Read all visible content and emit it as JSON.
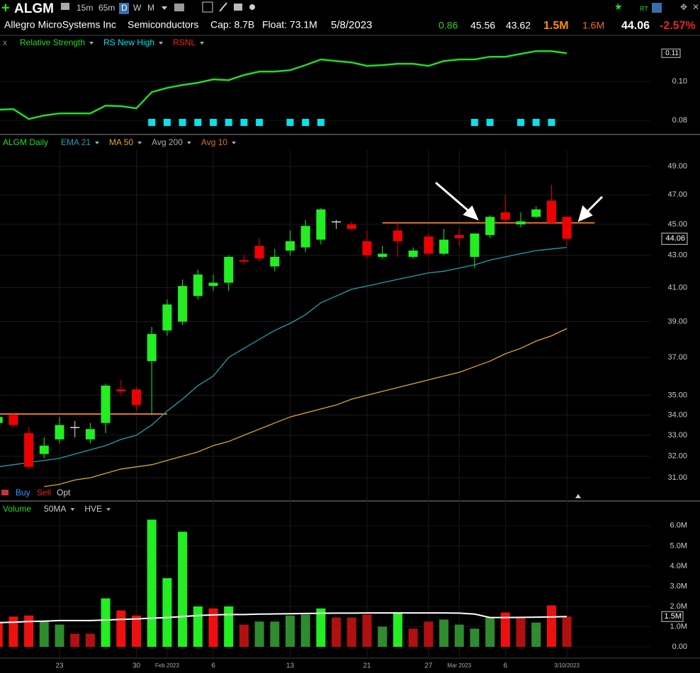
{
  "header": {
    "symbol": "ALGM",
    "timeframes": [
      "15m",
      "65m",
      "D",
      "W",
      "M"
    ],
    "company": "Allegro MicroSystems Inc",
    "sector": "Semiconductors",
    "cap": "Cap: 8.7B",
    "float": "Float: 73.1M",
    "date": "5/8/2023",
    "change": "0.86",
    "high": "45.56",
    "low": "43.62",
    "volume": "1.5M",
    "avg_volume": "1.6M",
    "last": "44.06",
    "change_pct": "-2.57%",
    "rt": "RT"
  },
  "chart_data": [
    {
      "type": "line",
      "legend": [
        "x",
        "Relative Strength",
        "RS New High",
        "RSNL"
      ],
      "color": "#22dd22",
      "marker_color": "#00e5ee",
      "values": [
        0.0855,
        0.0858,
        0.0807,
        0.0825,
        0.0836,
        0.0836,
        0.0836,
        0.0876,
        0.0873,
        0.0862,
        0.0945,
        0.0967,
        0.0982,
        0.0993,
        0.1011,
        0.1007,
        0.1033,
        0.1051,
        0.1051,
        0.1058,
        0.1084,
        0.1113,
        0.1105,
        0.1098,
        0.108,
        0.1084,
        0.1091,
        0.1091,
        0.108,
        0.1105,
        0.1113,
        0.1113,
        0.1127,
        0.1127,
        0.1142,
        0.1156,
        0.1156,
        0.1145
      ],
      "new_high": [
        false,
        false,
        false,
        false,
        false,
        false,
        false,
        false,
        false,
        false,
        true,
        true,
        true,
        true,
        true,
        true,
        true,
        true,
        false,
        true,
        true,
        true,
        false,
        false,
        false,
        false,
        false,
        false,
        false,
        false,
        false,
        true,
        true,
        false,
        true,
        true,
        true,
        false
      ],
      "last_value_label": "0.11",
      "ylim": [
        0.0735,
        0.1164
      ],
      "yticks": [
        {
          "value": 0.1,
          "label": "0.10"
        },
        {
          "value": 0.08,
          "label": "0.08"
        }
      ]
    },
    {
      "type": "candlestick",
      "legend": [
        "ALGM Daily",
        "EMA 21",
        "MA 50",
        "Avg 200",
        "Avg 10"
      ],
      "log_scale": true,
      "up_color": "#22ee22",
      "down_color": "#ee0000",
      "flat_color": "#dddddd",
      "categories": [
        null,
        null,
        null,
        null,
        "23",
        null,
        null,
        null,
        null,
        "30",
        null,
        "Feb 2023",
        null,
        null,
        "6",
        null,
        null,
        null,
        null,
        "13",
        null,
        null,
        null,
        null,
        "21",
        null,
        null,
        null,
        "27",
        null,
        "Mar 2023",
        null,
        null,
        "6",
        null,
        null,
        null,
        "3/10/2023"
      ],
      "open": [
        33.6,
        34.0,
        33.1,
        32.1,
        32.8,
        33.4,
        32.8,
        33.6,
        35.3,
        35.3,
        36.8,
        38.5,
        39.0,
        40.5,
        41.1,
        41.3,
        42.7,
        43.6,
        42.3,
        43.3,
        43.5,
        44.0,
        45.2,
        45.0,
        43.9,
        42.9,
        44.6,
        42.9,
        44.2,
        43.1,
        44.3,
        42.9,
        44.3,
        45.8,
        45.0,
        45.5,
        46.6,
        45.5
      ],
      "high": [
        34.0,
        34.1,
        33.4,
        32.9,
        33.9,
        33.7,
        33.6,
        35.6,
        35.8,
        35.4,
        38.7,
        40.3,
        41.5,
        42.1,
        41.8,
        43.0,
        43.0,
        44.1,
        43.4,
        44.6,
        45.3,
        46.1,
        45.3,
        45.2,
        44.6,
        43.6,
        45.2,
        43.5,
        44.4,
        44.7,
        44.7,
        44.4,
        45.6,
        47.0,
        45.8,
        46.2,
        47.7,
        45.56
      ],
      "low": [
        33.5,
        33.4,
        31.4,
        31.9,
        32.6,
        32.9,
        32.6,
        33.1,
        35.0,
        34.2,
        34.0,
        38.2,
        38.8,
        40.3,
        40.8,
        40.8,
        42.4,
        42.6,
        42.0,
        43.0,
        43.2,
        43.7,
        44.7,
        44.6,
        42.8,
        42.8,
        42.9,
        42.8,
        43.0,
        43.0,
        43.6,
        42.2,
        44.1,
        45.2,
        44.8,
        45.4,
        45.0,
        43.62
      ],
      "close": [
        33.9,
        33.5,
        31.5,
        32.5,
        33.5,
        33.4,
        33.3,
        35.5,
        35.2,
        34.5,
        38.3,
        40.0,
        41.1,
        41.8,
        41.3,
        42.9,
        42.6,
        42.8,
        42.9,
        43.9,
        44.9,
        46.0,
        45.2,
        44.7,
        43.0,
        43.1,
        43.9,
        43.3,
        43.1,
        44.0,
        44.1,
        44.4,
        45.5,
        45.3,
        45.2,
        46.0,
        45.1,
        44.06
      ],
      "series": [
        {
          "name": "EMA 21",
          "color": "#1aa3b0",
          "values": [
            31.5,
            31.6,
            31.7,
            31.8,
            31.9,
            32.1,
            32.3,
            32.5,
            32.8,
            33.0,
            33.5,
            34.2,
            34.8,
            35.5,
            36.0,
            37.0,
            37.5,
            38.0,
            38.5,
            38.9,
            39.4,
            40.1,
            40.5,
            40.9,
            41.1,
            41.3,
            41.5,
            41.7,
            41.9,
            42.0,
            42.2,
            42.4,
            42.7,
            42.9,
            43.1,
            43.3,
            43.4,
            43.5
          ]
        },
        {
          "name": "MA 50",
          "color": "#e0a820",
          "values": [
            null,
            null,
            null,
            30.6,
            30.7,
            30.9,
            31.0,
            31.2,
            31.4,
            31.5,
            31.6,
            31.8,
            32.0,
            32.2,
            32.5,
            32.7,
            33.0,
            33.3,
            33.6,
            33.9,
            34.1,
            34.3,
            34.5,
            34.8,
            35.0,
            35.2,
            35.4,
            35.6,
            35.8,
            36.0,
            36.2,
            36.5,
            36.8,
            37.2,
            37.5,
            37.9,
            38.2,
            38.6
          ]
        }
      ],
      "levels": [
        34.05,
        45.1
      ],
      "level_color": "#e07020",
      "trade_buttons": [
        "Buy",
        "Sell",
        "Opt"
      ],
      "ylim": [
        30.05,
        50.2
      ],
      "yticks": [
        {
          "value": 49,
          "label": "49.00"
        },
        {
          "value": 47,
          "label": "47.00"
        },
        {
          "value": 45,
          "label": "45.00"
        },
        {
          "value": 43,
          "label": "43.00"
        },
        {
          "value": 41,
          "label": "41.00"
        },
        {
          "value": 39,
          "label": "39.00"
        },
        {
          "value": 37,
          "label": "37.00"
        },
        {
          "value": 35,
          "label": "35.00"
        },
        {
          "value": 34,
          "label": "34.00"
        },
        {
          "value": 33,
          "label": "33.00"
        },
        {
          "value": 32,
          "label": "32.00"
        },
        {
          "value": 31,
          "label": "31.00"
        }
      ]
    },
    {
      "type": "bar",
      "legend": [
        "Volume",
        "50MA",
        "HVE"
      ],
      "up_color": "#2e8b2e",
      "down_color": "#b01010",
      "up_high_color": "#22ee22",
      "down_high_color": "#ee1010",
      "ma_color": "#ffffff",
      "values": [
        1250000,
        1500000,
        1550000,
        1250000,
        1100000,
        650000,
        650000,
        2400000,
        1800000,
        1550000,
        6300000,
        3400000,
        5700000,
        2000000,
        1900000,
        2000000,
        1100000,
        1250000,
        1250000,
        1550000,
        1600000,
        1900000,
        1450000,
        1450000,
        1600000,
        1000000,
        1700000,
        900000,
        1250000,
        1350000,
        1100000,
        900000,
        1450000,
        1700000,
        1450000,
        1200000,
        2050000,
        1500000
      ],
      "ma": [
        1200000,
        1220000,
        1250000,
        1270000,
        1300000,
        1300000,
        1300000,
        1330000,
        1360000,
        1380000,
        1420000,
        1450000,
        1500000,
        1550000,
        1580000,
        1600000,
        1600000,
        1620000,
        1630000,
        1640000,
        1650000,
        1660000,
        1670000,
        1670000,
        1680000,
        1680000,
        1680000,
        1680000,
        1680000,
        1680000,
        1670000,
        1620000,
        1450000,
        1450000,
        1460000,
        1470000,
        1480000,
        1500000
      ],
      "last_value_label": "1.5M",
      "ylim": [
        0,
        6450000
      ],
      "yticks": [
        {
          "value": 6000000,
          "label": "6.0M"
        },
        {
          "value": 5000000,
          "label": "5.0M"
        },
        {
          "value": 4000000,
          "label": "4.0M"
        },
        {
          "value": 3000000,
          "label": "3.0M"
        },
        {
          "value": 2000000,
          "label": "2.0M"
        },
        {
          "value": 1000000,
          "label": "1.0M"
        },
        {
          "value": 0,
          "label": "0.00"
        }
      ]
    }
  ]
}
